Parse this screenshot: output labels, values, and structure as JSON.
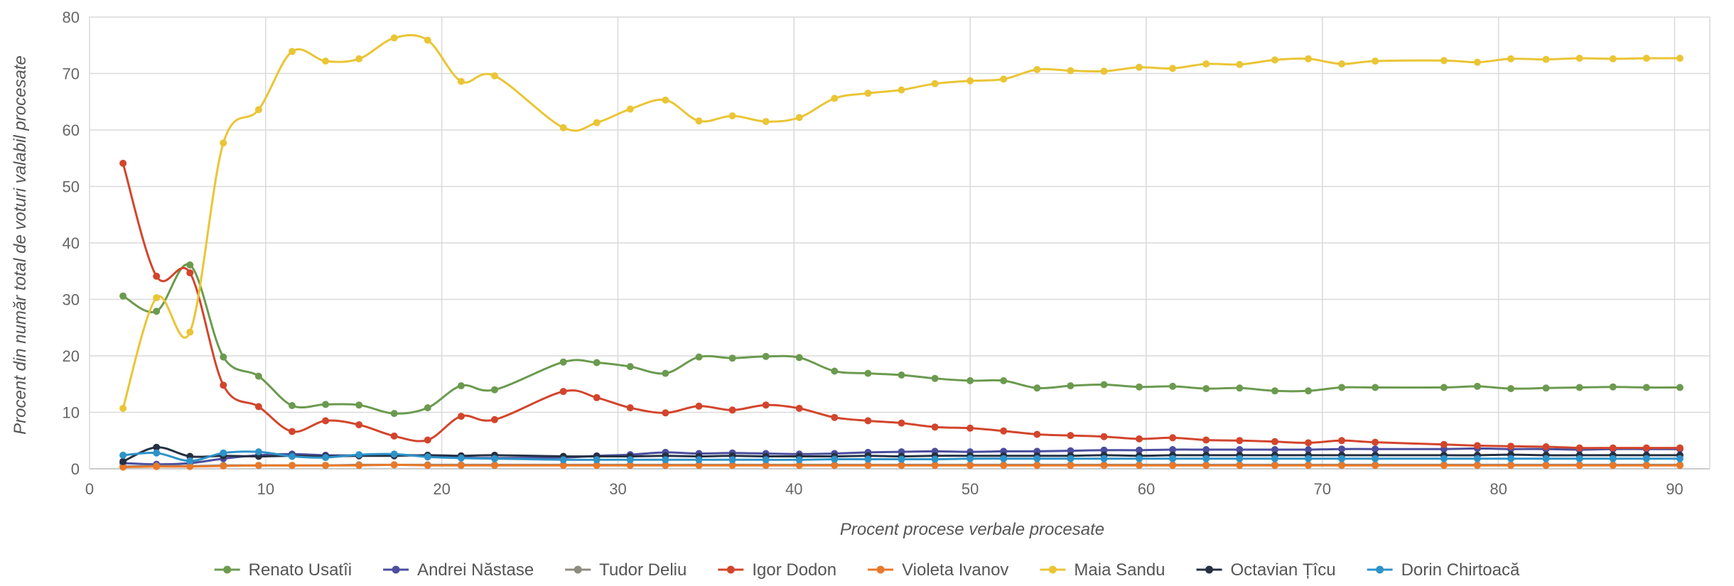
{
  "chart_data": {
    "type": "line",
    "title": "",
    "xlabel": "Procent procese verbale procesate",
    "ylabel": "Procent din număr total de voturi valabil procesate",
    "xlim": [
      0,
      92
    ],
    "ylim": [
      0,
      80
    ],
    "xticks": [
      0,
      10,
      20,
      30,
      40,
      50,
      60,
      70,
      80,
      90
    ],
    "yticks": [
      0,
      10,
      20,
      30,
      40,
      50,
      60,
      70,
      80
    ],
    "grid": true,
    "legend_position": "bottom",
    "x": [
      1.9,
      3.8,
      5.7,
      7.6,
      9.6,
      11.5,
      13.4,
      15.3,
      17.3,
      19.2,
      21.1,
      23.0,
      26.9,
      28.8,
      30.7,
      32.7,
      34.6,
      36.5,
      38.4,
      40.3,
      42.3,
      44.2,
      46.1,
      48.0,
      50.0,
      51.9,
      53.8,
      55.7,
      57.6,
      59.6,
      61.5,
      63.4,
      65.3,
      67.3,
      69.2,
      71.1,
      73.0,
      76.9,
      78.8,
      80.7,
      82.7,
      84.6,
      86.5,
      88.4,
      90.3
    ],
    "series": [
      {
        "name": "Renato Usatîi",
        "color": "#6b9a4f",
        "values": [
          30.6,
          27.9,
          36.1,
          19.8,
          16.4,
          11.2,
          11.4,
          11.3,
          9.8,
          10.8,
          14.7,
          14.0,
          18.9,
          18.8,
          18.1,
          16.9,
          19.8,
          19.6,
          19.9,
          19.7,
          17.3,
          16.9,
          16.6,
          16.0,
          15.6,
          15.6,
          14.3,
          14.7,
          14.9,
          14.5,
          14.6,
          14.2,
          14.3,
          13.8,
          13.8,
          14.4,
          14.4,
          14.4,
          14.6,
          14.2,
          14.3,
          14.4,
          14.5,
          14.4,
          14.4
        ]
      },
      {
        "name": "Andrei Năstase",
        "color": "#4b4e9e",
        "values": [
          1.0,
          0.8,
          1.0,
          1.8,
          2.4,
          2.6,
          2.4,
          2.4,
          2.5,
          2.3,
          2.0,
          1.9,
          2.0,
          2.3,
          2.5,
          2.9,
          2.7,
          2.8,
          2.7,
          2.6,
          2.7,
          2.9,
          3.0,
          3.1,
          3.0,
          3.1,
          3.1,
          3.2,
          3.3,
          3.3,
          3.4,
          3.4,
          3.4,
          3.4,
          3.4,
          3.5,
          3.5,
          3.5,
          3.6,
          3.5,
          3.5,
          3.4,
          3.5,
          3.5,
          3.5
        ]
      },
      {
        "name": "Tudor Deliu",
        "color": "#8e8b80",
        "values": [
          0.4,
          0.5,
          0.5,
          0.6,
          0.6,
          0.6,
          0.6,
          0.7,
          0.7,
          0.7,
          0.7,
          0.7,
          0.7,
          0.7,
          0.7,
          0.7,
          0.7,
          0.7,
          0.7,
          0.7,
          0.7,
          0.7,
          0.7,
          0.7,
          0.7,
          0.7,
          0.7,
          0.7,
          0.7,
          0.7,
          0.7,
          0.7,
          0.7,
          0.7,
          0.7,
          0.7,
          0.7,
          0.7,
          0.7,
          0.7,
          0.7,
          0.7,
          0.7,
          0.7,
          0.7
        ]
      },
      {
        "name": "Igor Dodon",
        "color": "#d2452c",
        "values": [
          54.1,
          34.1,
          34.7,
          14.8,
          11.0,
          6.6,
          8.5,
          7.8,
          5.8,
          5.1,
          9.3,
          8.7,
          13.7,
          12.6,
          10.8,
          9.9,
          11.1,
          10.4,
          11.3,
          10.7,
          9.1,
          8.5,
          8.1,
          7.4,
          7.2,
          6.7,
          6.1,
          5.9,
          5.7,
          5.3,
          5.5,
          5.1,
          5.0,
          4.8,
          4.6,
          5.0,
          4.7,
          4.3,
          4.1,
          4.0,
          3.9,
          3.7,
          3.7,
          3.7,
          3.7
        ]
      },
      {
        "name": "Violeta Ivanov",
        "color": "#e8792a",
        "values": [
          0.3,
          0.4,
          0.4,
          0.5,
          0.6,
          0.6,
          0.6,
          0.6,
          0.7,
          0.6,
          0.6,
          0.6,
          0.6,
          0.6,
          0.6,
          0.6,
          0.6,
          0.6,
          0.6,
          0.6,
          0.6,
          0.6,
          0.6,
          0.6,
          0.6,
          0.6,
          0.6,
          0.6,
          0.6,
          0.6,
          0.6,
          0.6,
          0.6,
          0.6,
          0.6,
          0.6,
          0.6,
          0.6,
          0.6,
          0.6,
          0.6,
          0.6,
          0.6,
          0.6,
          0.6
        ]
      },
      {
        "name": "Maia Sandu",
        "color": "#eac535",
        "values": [
          10.7,
          30.3,
          24.2,
          57.7,
          63.6,
          73.9,
          72.2,
          72.6,
          76.3,
          75.9,
          68.6,
          69.6,
          60.4,
          61.3,
          63.7,
          65.3,
          61.6,
          62.5,
          61.5,
          62.2,
          65.6,
          66.5,
          67.1,
          68.2,
          68.7,
          69.0,
          70.7,
          70.5,
          70.4,
          71.1,
          70.9,
          71.7,
          71.6,
          72.4,
          72.6,
          71.7,
          72.2,
          72.3,
          72.0,
          72.6,
          72.5,
          72.7,
          72.6,
          72.7,
          72.7
        ]
      },
      {
        "name": "Octavian Țîcu",
        "color": "#253042",
        "values": [
          1.3,
          3.8,
          2.2,
          2.3,
          2.2,
          2.3,
          2.2,
          2.3,
          2.3,
          2.4,
          2.3,
          2.4,
          2.2,
          2.2,
          2.2,
          2.3,
          2.2,
          2.3,
          2.2,
          2.2,
          2.2,
          2.3,
          2.2,
          2.3,
          2.3,
          2.3,
          2.3,
          2.3,
          2.4,
          2.3,
          2.4,
          2.4,
          2.4,
          2.4,
          2.4,
          2.4,
          2.4,
          2.4,
          2.4,
          2.5,
          2.4,
          2.4,
          2.4,
          2.4,
          2.4
        ]
      },
      {
        "name": "Dorin Chirtoacă",
        "color": "#2e93c9",
        "values": [
          2.4,
          2.8,
          1.4,
          2.8,
          3.0,
          2.2,
          2.0,
          2.5,
          2.6,
          2.1,
          1.9,
          1.8,
          1.6,
          1.6,
          1.6,
          1.6,
          1.6,
          1.6,
          1.6,
          1.6,
          1.7,
          1.7,
          1.7,
          1.7,
          1.8,
          1.8,
          1.8,
          1.8,
          1.8,
          1.8,
          1.8,
          1.8,
          1.8,
          1.8,
          1.8,
          1.8,
          1.8,
          1.8,
          1.8,
          1.8,
          1.8,
          1.8,
          1.8,
          1.8,
          1.8
        ]
      }
    ]
  }
}
